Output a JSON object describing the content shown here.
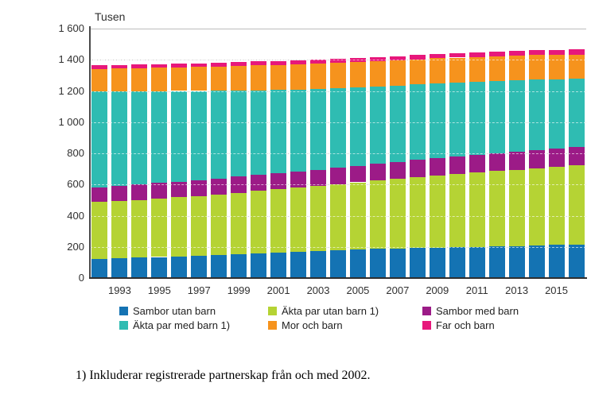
{
  "chart": {
    "unit_label": "Tusen",
    "footnote": "1) Inkluderar registrerade partnerskap från och med 2002."
  },
  "chart_data": {
    "type": "bar",
    "stacked": true,
    "title": "",
    "ylabel": "Tusen",
    "xlabel": "",
    "ylim": [
      0,
      1600
    ],
    "ytick_step": 200,
    "ytick_labels": [
      "0",
      "200",
      "400",
      "600",
      "800",
      "1 000",
      "1 200",
      "1 400",
      "1 600"
    ],
    "grid": "horizontal-dotted",
    "legend_position": "bottom",
    "x": [
      1992,
      1993,
      1994,
      1995,
      1996,
      1997,
      1998,
      1999,
      2000,
      2001,
      2002,
      2003,
      2004,
      2005,
      2006,
      2007,
      2008,
      2009,
      2010,
      2011,
      2012,
      2013,
      2014,
      2015,
      2016
    ],
    "x_tick_labels": [
      "1993",
      "1995",
      "1997",
      "1999",
      "2001",
      "2003",
      "2005",
      "2007",
      "2009",
      "2011",
      "2013",
      "2015"
    ],
    "series": [
      {
        "name": "Sambor utan barn",
        "color": "#1473b3",
        "values": [
          123,
          127,
          131,
          135,
          140,
          145,
          150,
          155,
          160,
          165,
          170,
          174,
          178,
          182,
          186,
          189,
          192,
          195,
          198,
          201,
          203,
          206,
          209,
          212,
          215
        ]
      },
      {
        "name": "Äkta par utan barn 1)",
        "color": "#b5d334",
        "values": [
          364,
          367,
          370,
          374,
          378,
          382,
          387,
          392,
          398,
          404,
          410,
          417,
          424,
          432,
          440,
          448,
          456,
          463,
          470,
          477,
          483,
          489,
          495,
          501,
          507
        ]
      },
      {
        "name": "Sambor med barn",
        "color": "#9c1b87",
        "values": [
          94,
          96,
          98,
          100,
          101,
          102,
          102,
          103,
          103,
          103,
          104,
          104,
          105,
          107,
          108,
          109,
          110,
          112,
          113,
          114,
          116,
          117,
          117,
          117,
          117
        ]
      },
      {
        "name": "Äkta par med barn 1)",
        "color": "#2fbcb2",
        "values": [
          617,
          608,
          599,
          590,
          581,
          571,
          562,
          553,
          544,
          535,
          526,
          518,
          510,
          502,
          495,
          489,
          483,
          477,
          471,
          466,
          461,
          456,
          451,
          446,
          441
        ]
      },
      {
        "name": "Mor och barn",
        "color": "#f6931d",
        "values": [
          143,
          145,
          147,
          149,
          151,
          153,
          155,
          157,
          159,
          160,
          161,
          161,
          162,
          162,
          162,
          162,
          162,
          162,
          162,
          161,
          161,
          160,
          158,
          156,
          154
        ]
      },
      {
        "name": "Far och barn",
        "color": "#e7187b",
        "values": [
          25,
          25,
          25,
          25,
          25,
          25,
          25,
          25,
          25,
          26,
          26,
          26,
          26,
          26,
          27,
          27,
          28,
          28,
          29,
          29,
          30,
          30,
          31,
          31,
          32
        ]
      }
    ]
  }
}
